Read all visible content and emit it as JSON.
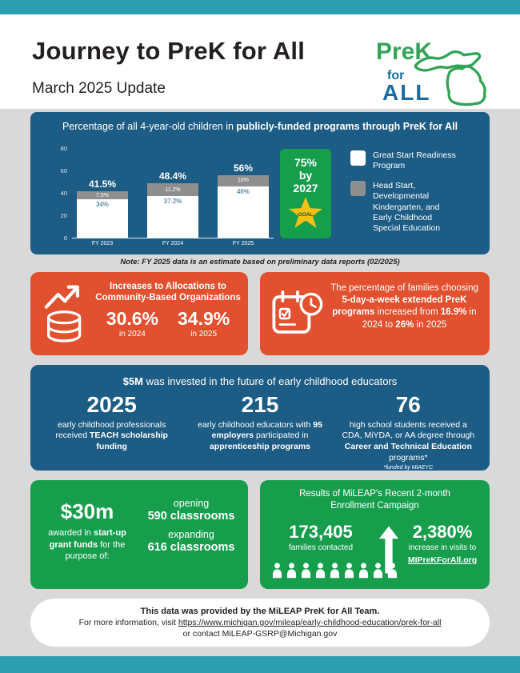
{
  "colors": {
    "teal": "#2b9fb0",
    "panel_blue": "#1d5c85",
    "panel_orange": "#e2512f",
    "panel_green": "#179e4d",
    "gold": "#f2c118",
    "bar_gray": "#8e8e8e",
    "page_bg": "#d9d9d9",
    "logo_green": "#33a457",
    "logo_blue": "#1c6ba0"
  },
  "page": {
    "title": "Journey to PreK for All",
    "subtitle": "March 2025 Update"
  },
  "logo": {
    "prek": "PreK",
    "for": "for",
    "all": "ALL"
  },
  "chart_panel": {
    "title_regular": "Percentage of all 4-year-old children in ",
    "title_bold": "publicly-funded programs through PreK for All",
    "goal": {
      "line1": "75%",
      "line2": "by",
      "line3": "2027",
      "star_label": "GOAL"
    },
    "legend": [
      {
        "label": "Great Start Readiness Program",
        "color": "#ffffff"
      },
      {
        "label": "Head Start, Developmental Kindergarten, and Early Childhood Special Education",
        "color": "#8e8e8e"
      }
    ],
    "note": "Note: FY 2025 data is an estimate based on preliminary data reports (02/2025)"
  },
  "chart_data": {
    "type": "bar",
    "stacked": true,
    "title": "Percentage of all 4-year-old children in publicly-funded programs through PreK for All",
    "categories": [
      "FY 2023",
      "FY 2024",
      "FY 2025"
    ],
    "series": [
      {
        "name": "Great Start Readiness Program",
        "color": "#ffffff",
        "values": [
          34,
          37.2,
          46
        ],
        "labels": [
          "34%",
          "37.2%",
          "46%"
        ]
      },
      {
        "name": "Head Start, Developmental Kindergarten, and Early Childhood Special Education",
        "color": "#8e8e8e",
        "values": [
          7.5,
          11.2,
          10
        ],
        "labels": [
          "7.5%",
          "11.2%",
          "10%"
        ]
      }
    ],
    "totals": [
      "41.5%",
      "48.4%",
      "56%"
    ],
    "yticks": [
      0,
      20,
      40,
      60,
      80
    ],
    "ylim": [
      0,
      80
    ],
    "goal_annotation": "75% by 2027 GOAL",
    "legend_position": "right",
    "grid": false
  },
  "allocations": {
    "heading": "Increases to Allocations to Community-Based Organizations",
    "stats": [
      {
        "value": "30.6%",
        "label": "in 2024"
      },
      {
        "value": "34.9%",
        "label": "in 2025"
      }
    ]
  },
  "families": {
    "t1": "The percentage of families choosing ",
    "b1": "5-day-a-week extended PreK programs",
    "t2": " increased from ",
    "b2": "16.9%",
    "t3": " in 2024 to ",
    "b3": "26%",
    "t4": " in 2025"
  },
  "educators": {
    "heading_bold": "$5M",
    "heading_rest": " was invested in the future of early childhood educators",
    "columns": [
      {
        "number": "2025",
        "t1": "early childhood professionals received ",
        "b1": "TEACH scholarship funding"
      },
      {
        "number": "215",
        "t1": "early childhood educators with ",
        "b1": "95 employers",
        "t2": " participated in ",
        "b2": "apprenticeship programs"
      },
      {
        "number": "76",
        "t1": "high school students received a CDA, MiYDA, or AA degree through ",
        "b1": "Career and Technical Education",
        "t2": " programs*",
        "footnote": "*funded by MiAEYC"
      }
    ]
  },
  "grants": {
    "amount": "$30m",
    "t1": "awarded in ",
    "b1": "start-up grant funds",
    "t2": " for the purpose of:",
    "items": [
      {
        "action": "opening",
        "value": "590 classrooms"
      },
      {
        "action": "expanding",
        "value": "616 classrooms"
      }
    ]
  },
  "enrollment": {
    "heading": "Results of MiLEAP's Recent 2-month Enrollment Campaign",
    "contacted_value": "173,405",
    "contacted_label": "families contacted",
    "people_count": 9,
    "increase_value": "2,380%",
    "increase_label": "increase in visits to",
    "link": "MIPreKForAll.org"
  },
  "footer": {
    "line1": "This data was provided by the MiLEAP PreK for All Team.",
    "line2_prefix": "For more information, visit ",
    "link": "https://www.michigan.gov/mileap/early-childhood-education/prek-for-all",
    "line3": "or contact MiLEAP-GSRP@Michigan.gov"
  }
}
